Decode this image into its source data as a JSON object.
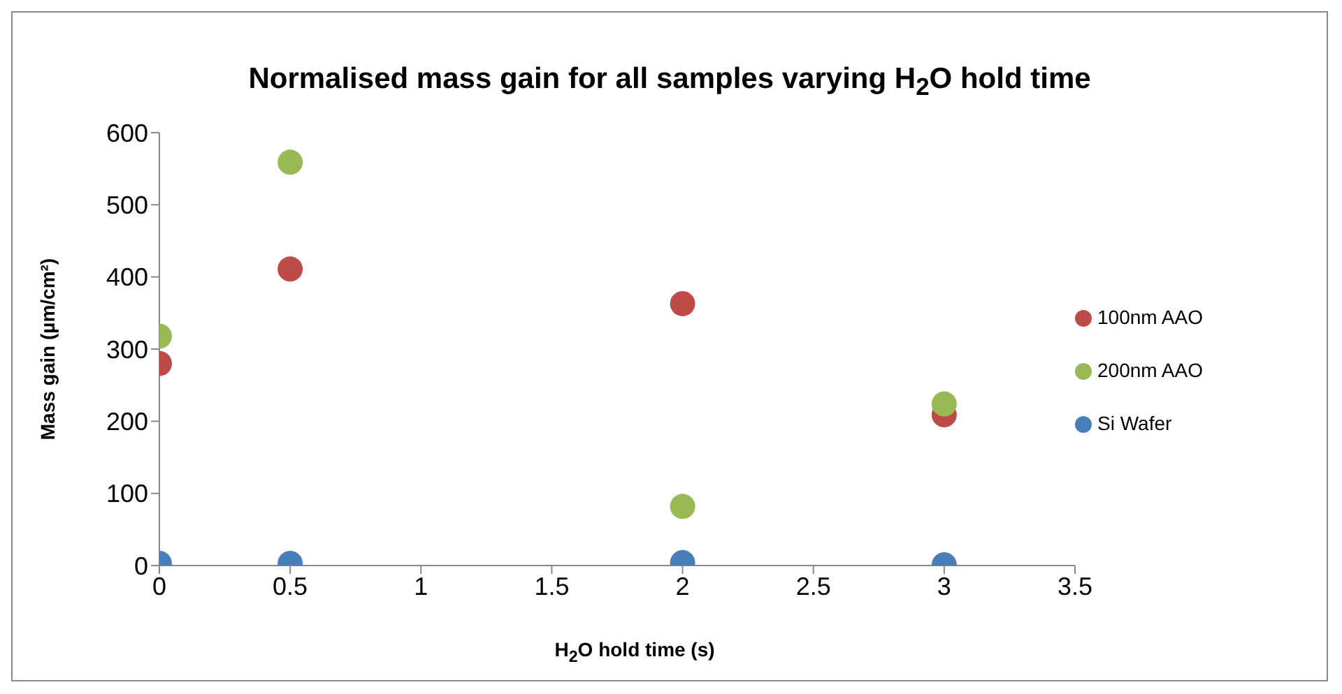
{
  "chart_data": {
    "type": "scatter",
    "title": "Normalised mass gain for all samples varying H$_{2}$O hold time",
    "xlabel": "H$_{2}$O hold time (s)",
    "ylabel": "Mass gain (µm/cm²)",
    "x": [
      0,
      0.5,
      2,
      3
    ],
    "series": [
      {
        "name": "Si Wafer",
        "color": "#4a7ebb",
        "values": [
          3,
          3,
          4,
          1
        ]
      },
      {
        "name": "100nm AAO",
        "color": "#be4b48",
        "values": [
          280,
          411,
          363,
          209
        ]
      },
      {
        "name": "200nm AAO",
        "color": "#98b954",
        "values": [
          318,
          559,
          82,
          224
        ]
      }
    ],
    "xlim": [
      0,
      3.5
    ],
    "xticks": [
      0,
      0.5,
      1,
      1.5,
      2,
      2.5,
      3,
      3.5
    ],
    "ylim": [
      0,
      600
    ],
    "yticks": [
      0,
      100,
      200,
      300,
      400,
      500,
      600
    ],
    "grid": false,
    "legend": "right",
    "marker": "circle"
  }
}
